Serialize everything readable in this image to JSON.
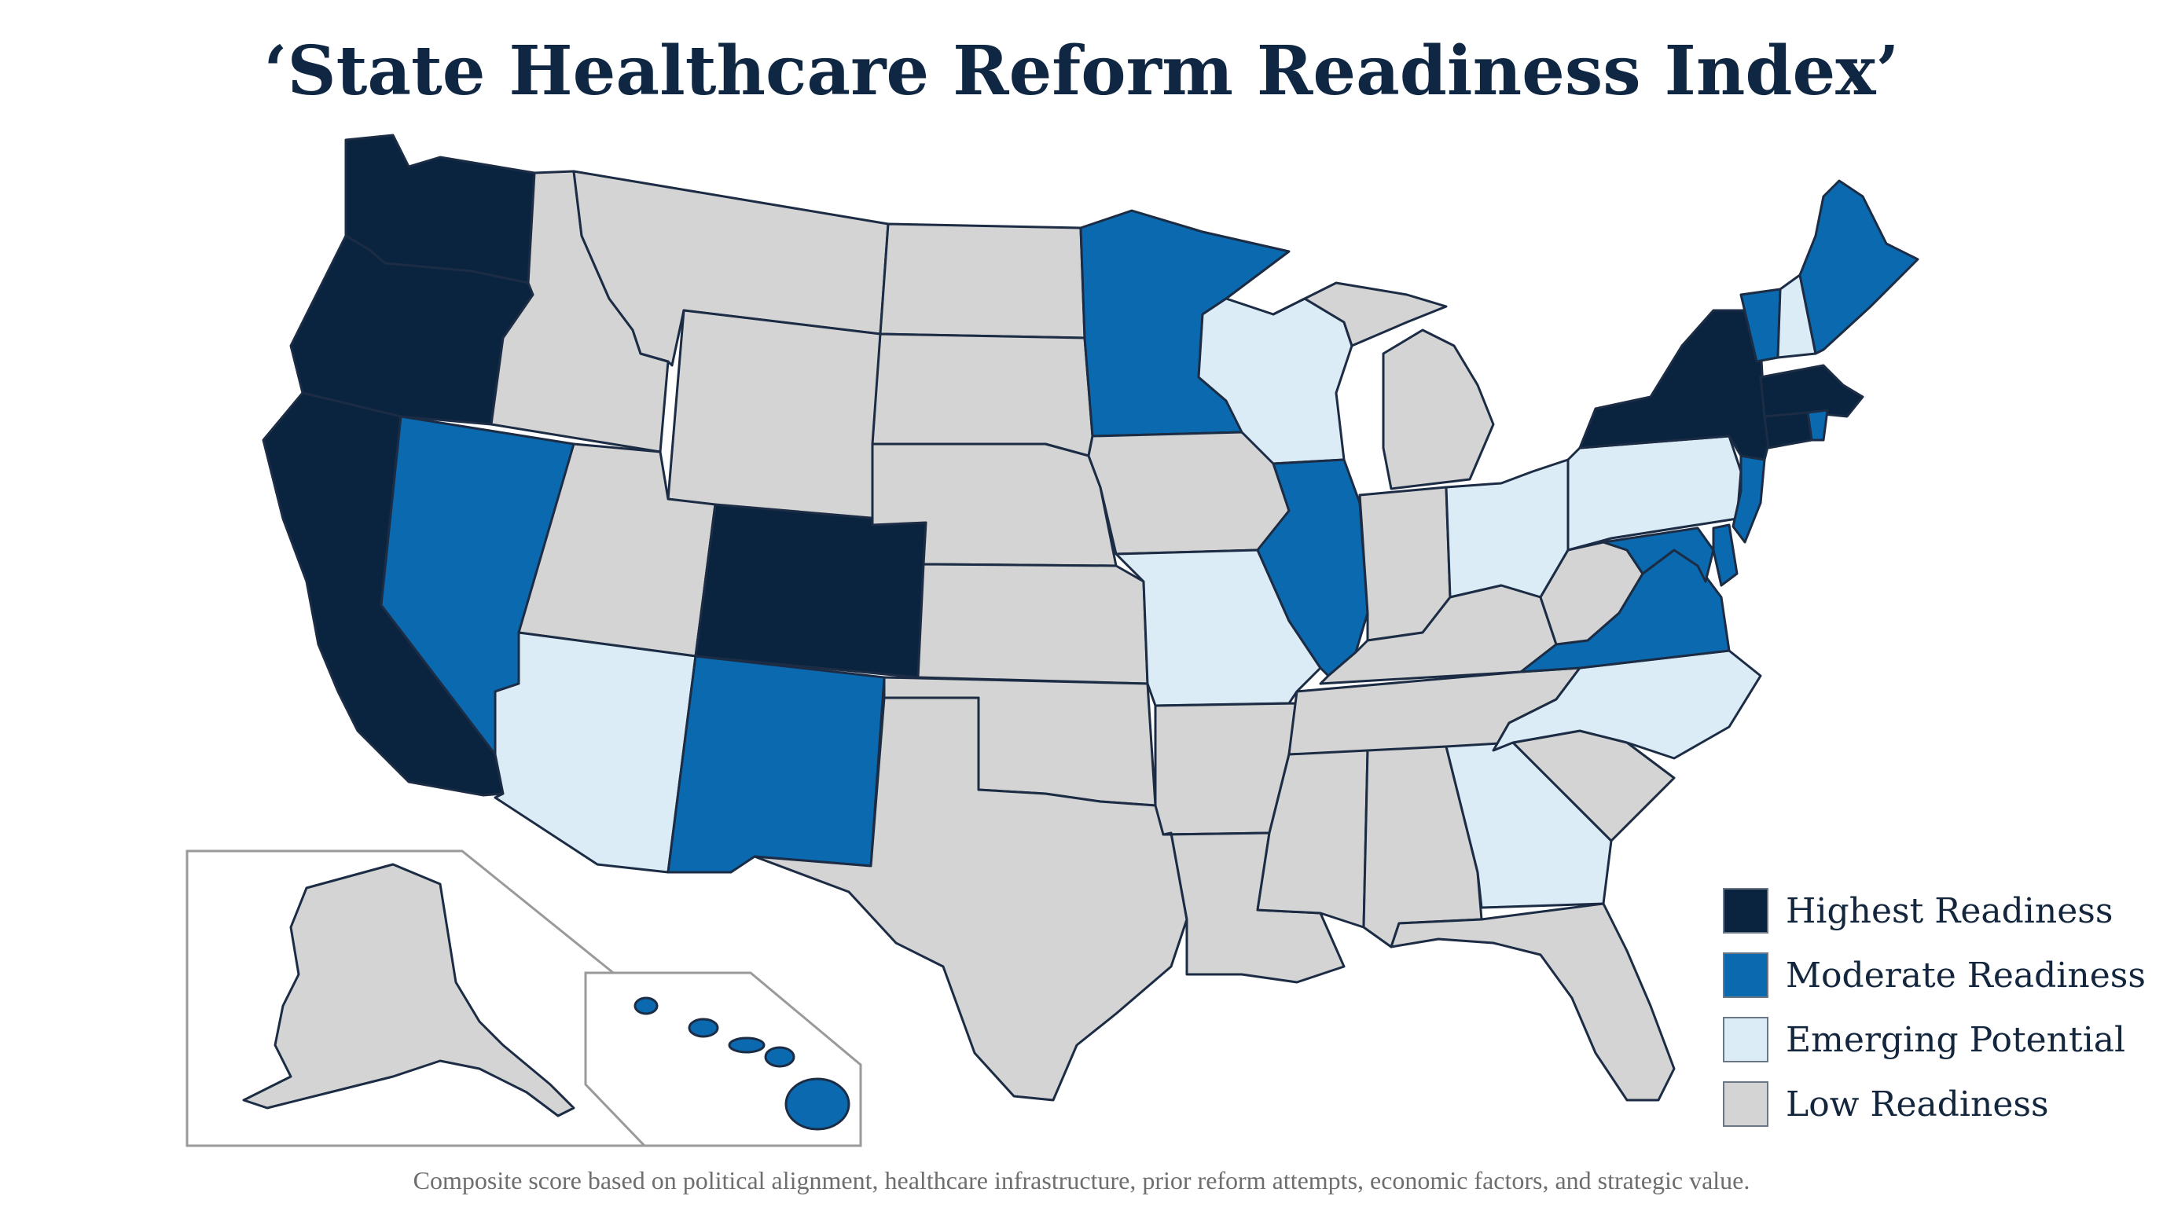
{
  "title": "‘State Healthcare Reform Readiness Index’",
  "footnote": "Composite score based on political alignment, healthcare infrastructure, prior reform attempts, economic factors, and strategic value.",
  "colors": {
    "highest": "#0a2440",
    "moderate": "#0b6aaf",
    "emerging": "#dcecf6",
    "low": "#d4d4d4",
    "border": "#1b2c44",
    "inset_border": "#9a9a9a"
  },
  "legend": [
    {
      "key": "highest",
      "label": "Highest Readiness"
    },
    {
      "key": "moderate",
      "label": "Moderate Readiness"
    },
    {
      "key": "emerging",
      "label": "Emerging Potential"
    },
    {
      "key": "low",
      "label": "Low Readiness"
    }
  ],
  "categories": {
    "highest": [
      "WA",
      "OR",
      "CA",
      "CO",
      "NY",
      "MA",
      "CT"
    ],
    "moderate": [
      "NV",
      "NM",
      "MN",
      "IL",
      "VA",
      "MD",
      "NJ",
      "DE",
      "VT",
      "ME",
      "RI",
      "HI"
    ],
    "emerging": [
      "AZ",
      "WI",
      "MO",
      "OH",
      "PA",
      "NC",
      "GA",
      "NH"
    ],
    "low": [
      "ID",
      "MT",
      "WY",
      "UT",
      "ND",
      "SD",
      "NE",
      "KS",
      "OK",
      "TX",
      "IA",
      "AR",
      "LA",
      "MS",
      "AL",
      "TN",
      "KY",
      "IN",
      "MI",
      "WV",
      "SC",
      "FL",
      "AK"
    ]
  }
}
